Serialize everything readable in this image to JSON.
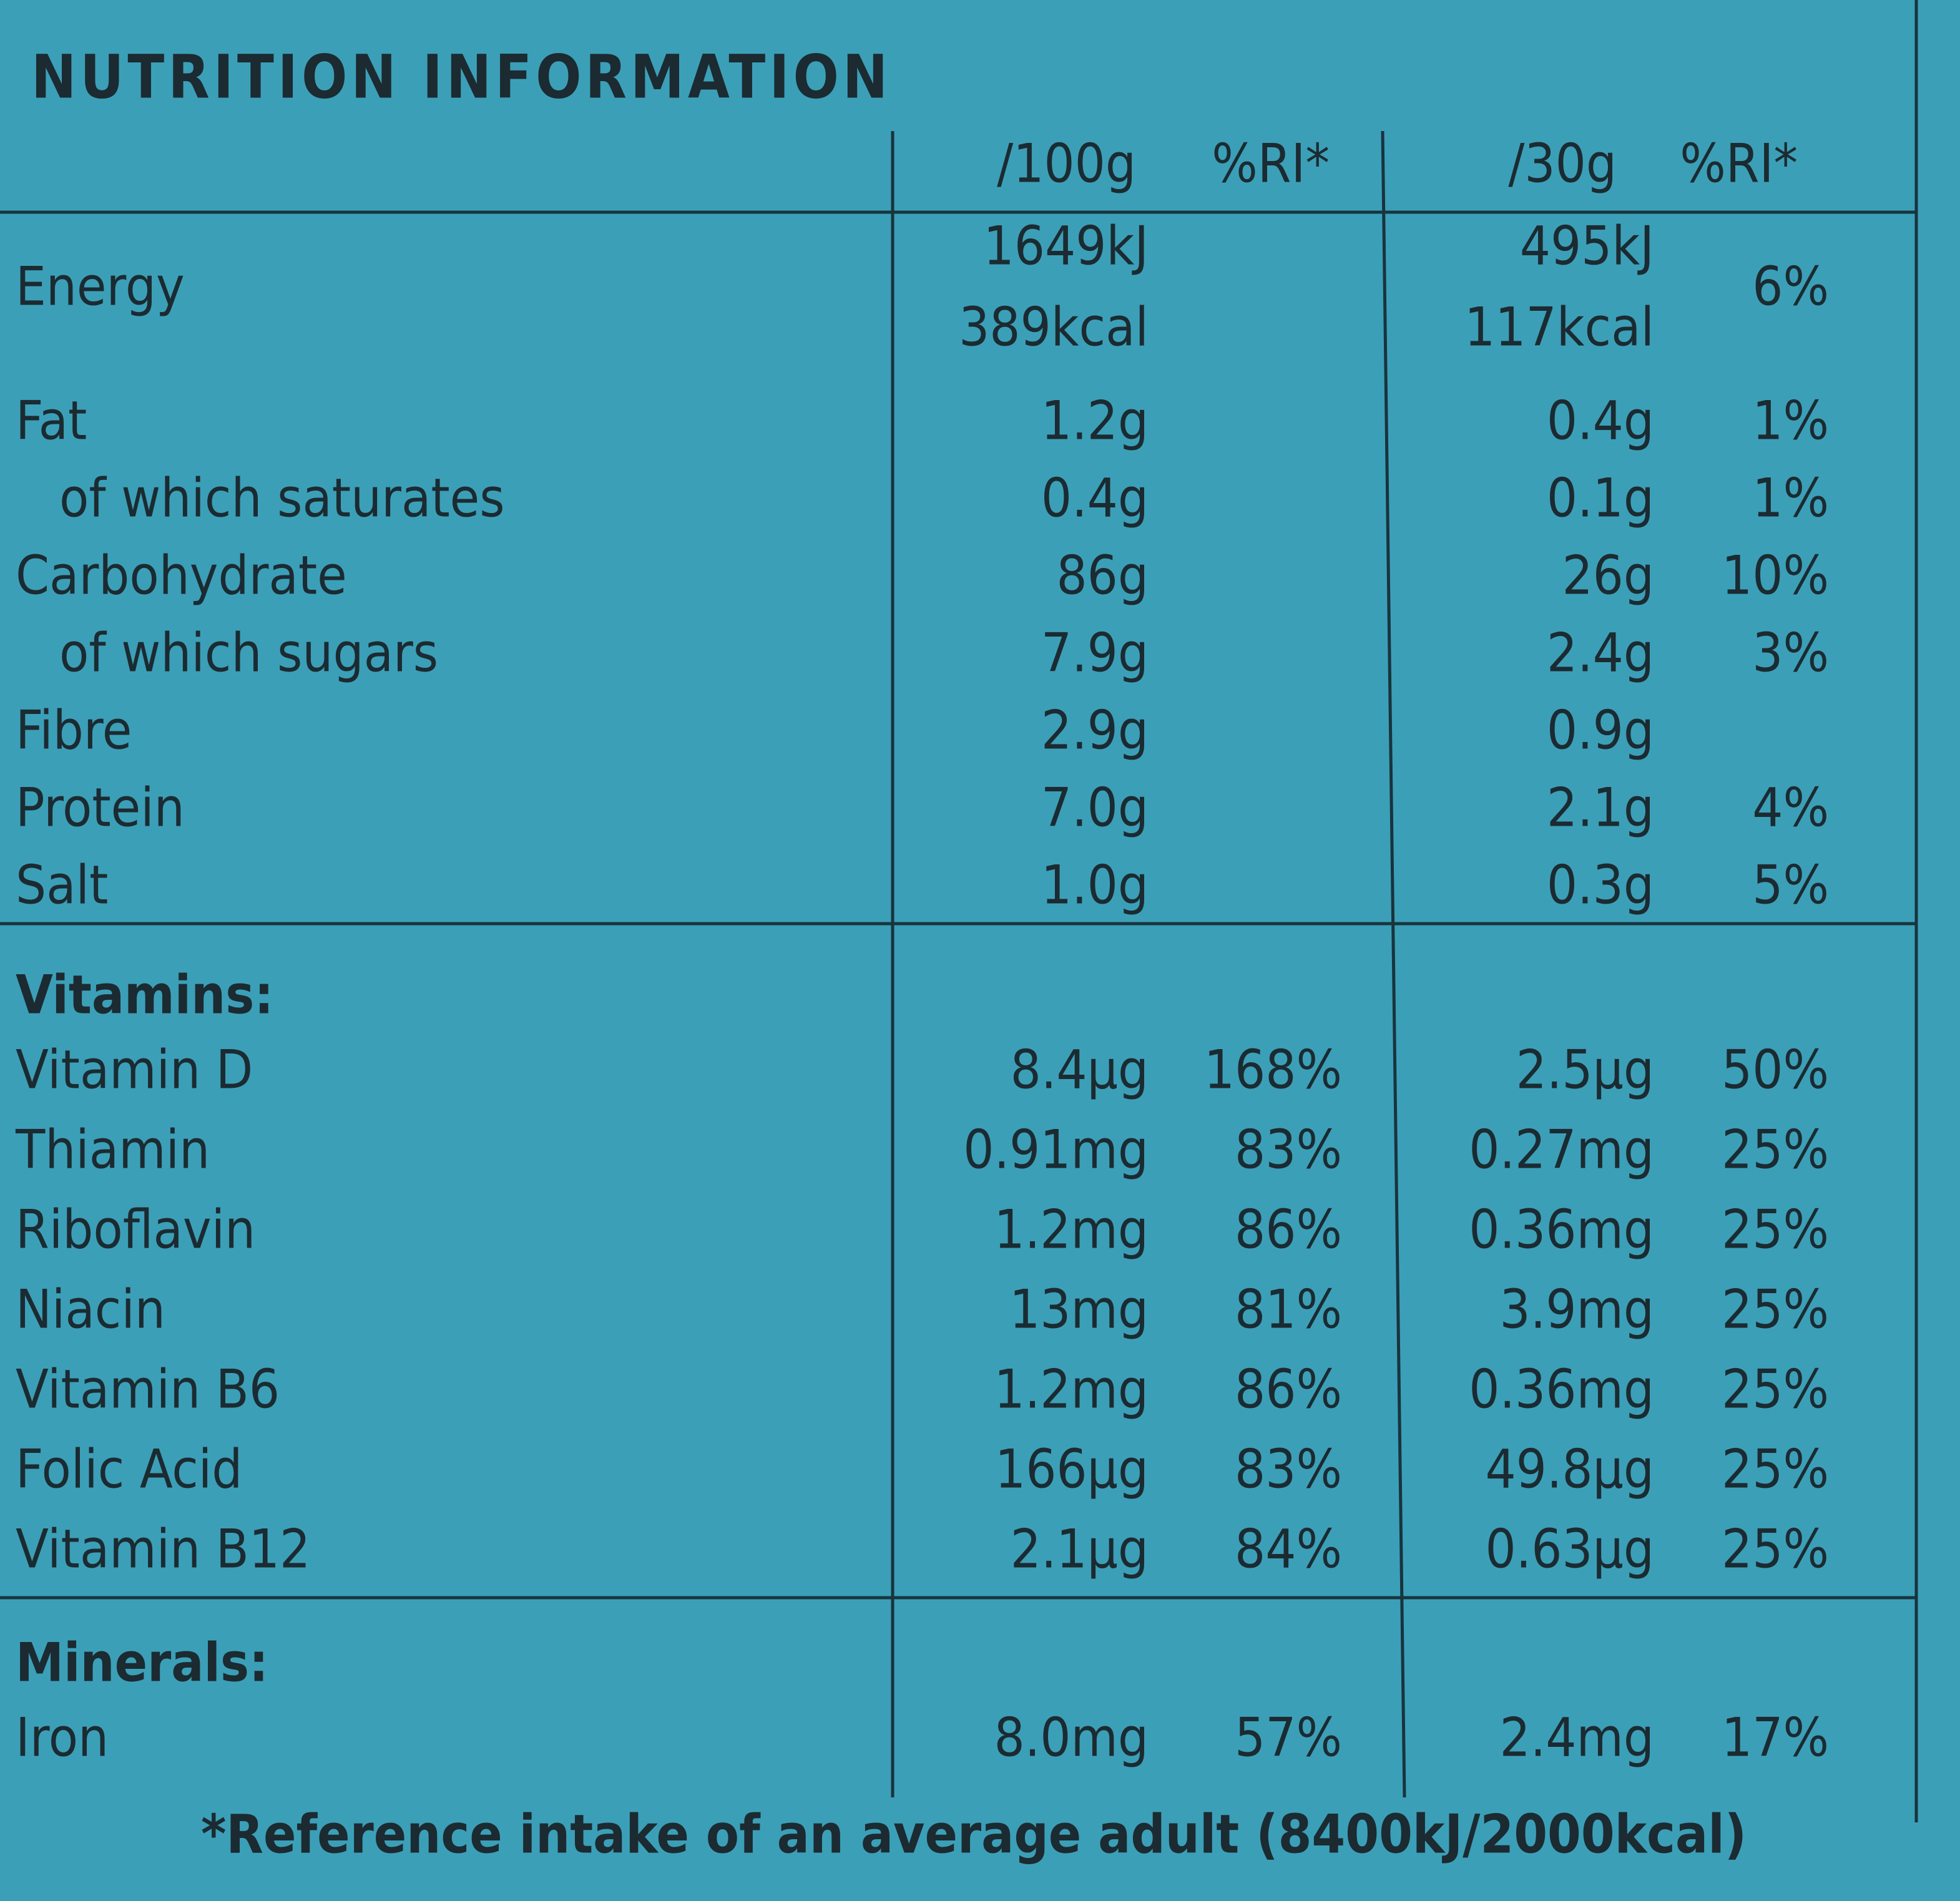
{
  "title": "NUTRITION INFORMATION",
  "header": {
    "per100g": "/100g",
    "ri100g": "%RI*",
    "per30g": "/30g",
    "ri30g": "%RI*"
  },
  "nutrients": [
    {
      "label": "Energy",
      "per100g": [
        "1649kJ",
        "389kcal"
      ],
      "per30g": [
        "495kJ",
        "117kcal"
      ],
      "ri30g": "6%"
    },
    {
      "label": "Fat",
      "per100g": "1.2g",
      "per30g": "0.4g",
      "ri30g": "1%"
    },
    {
      "label": "of which saturates",
      "per100g": "0.4g",
      "per30g": "0.1g",
      "ri30g": "1%"
    },
    {
      "label": "Carbohydrate",
      "per100g": "86g",
      "per30g": "26g",
      "ri30g": "10%"
    },
    {
      "label": "of which sugars",
      "per100g": "7.9g",
      "per30g": "2.4g",
      "ri30g": "3%"
    },
    {
      "label": "Fibre",
      "per100g": "2.9g",
      "per30g": "0.9g"
    },
    {
      "label": "Protein",
      "per100g": "7.0g",
      "per30g": "2.1g",
      "ri30g": "4%"
    },
    {
      "label": "Salt",
      "per100g": "1.0g",
      "per30g": "0.3g",
      "ri30g": "5%"
    }
  ],
  "vitamins": {
    "heading": "Vitamins:",
    "rows": [
      {
        "label": "Vitamin D",
        "per100g": "8.4µg",
        "ri100g": "168%",
        "per30g": "2.5µg",
        "ri30g": "50%"
      },
      {
        "label": "Thiamin",
        "per100g": "0.91mg",
        "ri100g": "83%",
        "per30g": "0.27mg",
        "ri30g": "25%"
      },
      {
        "label": "Riboflavin",
        "per100g": "1.2mg",
        "ri100g": "86%",
        "per30g": "0.36mg",
        "ri30g": "25%"
      },
      {
        "label": "Niacin",
        "per100g": "13mg",
        "ri100g": "81%",
        "per30g": "3.9mg",
        "ri30g": "25%"
      },
      {
        "label": "Vitamin B6",
        "per100g": "1.2mg",
        "ri100g": "86%",
        "per30g": "0.36mg",
        "ri30g": "25%"
      },
      {
        "label": "Folic Acid",
        "per100g": "166µg",
        "ri100g": "83%",
        "per30g": "49.8µg",
        "ri30g": "25%"
      },
      {
        "label": "Vitamin B12",
        "per100g": "2.1µg",
        "ri100g": "84%",
        "per30g": "0.63µg",
        "ri30g": "25%"
      }
    ]
  },
  "minerals": {
    "heading": "Minerals:",
    "rows": [
      {
        "label": "Iron",
        "per100g": "8.0mg",
        "ri100g": "57%",
        "per30g": "2.4mg",
        "ri30g": "17%"
      }
    ]
  },
  "footnote": "*Reference intake of an average adult (8400kJ/2000kcal)"
}
